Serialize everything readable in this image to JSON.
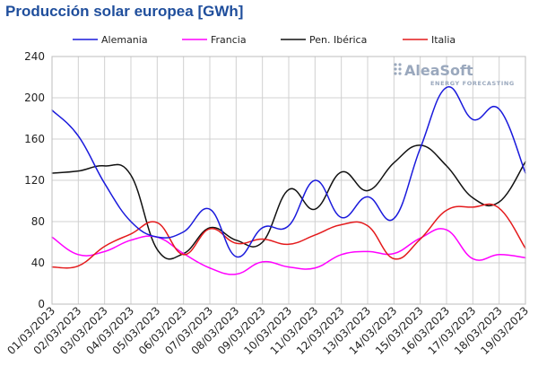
{
  "chart_data": {
    "type": "line",
    "title": "Producción solar europea [GWh]",
    "x": [
      "01/03/2023",
      "02/03/2023",
      "03/03/2023",
      "04/03/2023",
      "05/03/2023",
      "06/03/2023",
      "07/03/2023",
      "08/03/2023",
      "09/03/2023",
      "10/03/2023",
      "11/03/2023",
      "12/03/2023",
      "13/03/2023",
      "14/03/2023",
      "15/03/2023",
      "16/03/2023",
      "17/03/2023",
      "18/03/2023",
      "19/03/2023"
    ],
    "ylim": [
      0,
      240
    ],
    "yticks": [
      0,
      40,
      80,
      120,
      160,
      200,
      240
    ],
    "grid": true,
    "legend_position": "top",
    "series": [
      {
        "name": "Alemania",
        "color": "#1a1adc",
        "values": [
          188,
          163,
          117,
          80,
          65,
          70,
          92,
          46,
          74,
          76,
          120,
          84,
          104,
          83,
          151,
          210,
          179,
          189,
          127
        ]
      },
      {
        "name": "Francia",
        "color": "#ff00ff",
        "values": [
          65,
          48,
          51,
          62,
          65,
          49,
          35,
          29,
          41,
          36,
          35,
          48,
          51,
          49,
          64,
          72,
          44,
          48,
          45
        ]
      },
      {
        "name": "Pen. Ibérica",
        "color": "#111111",
        "values": [
          127,
          129,
          134,
          125,
          53,
          49,
          74,
          62,
          60,
          111,
          92,
          128,
          110,
          137,
          154,
          134,
          103,
          99,
          138
        ]
      },
      {
        "name": "Italia",
        "color": "#e41a1c",
        "values": [
          36,
          37,
          56,
          68,
          79,
          48,
          73,
          59,
          63,
          58,
          67,
          77,
          76,
          44,
          63,
          91,
          94,
          93,
          54
        ]
      }
    ]
  },
  "logo": {
    "name": "AleaSoft",
    "tagline": "ENERGY FORECASTING",
    "icon": "grid-dots-logo-icon"
  }
}
